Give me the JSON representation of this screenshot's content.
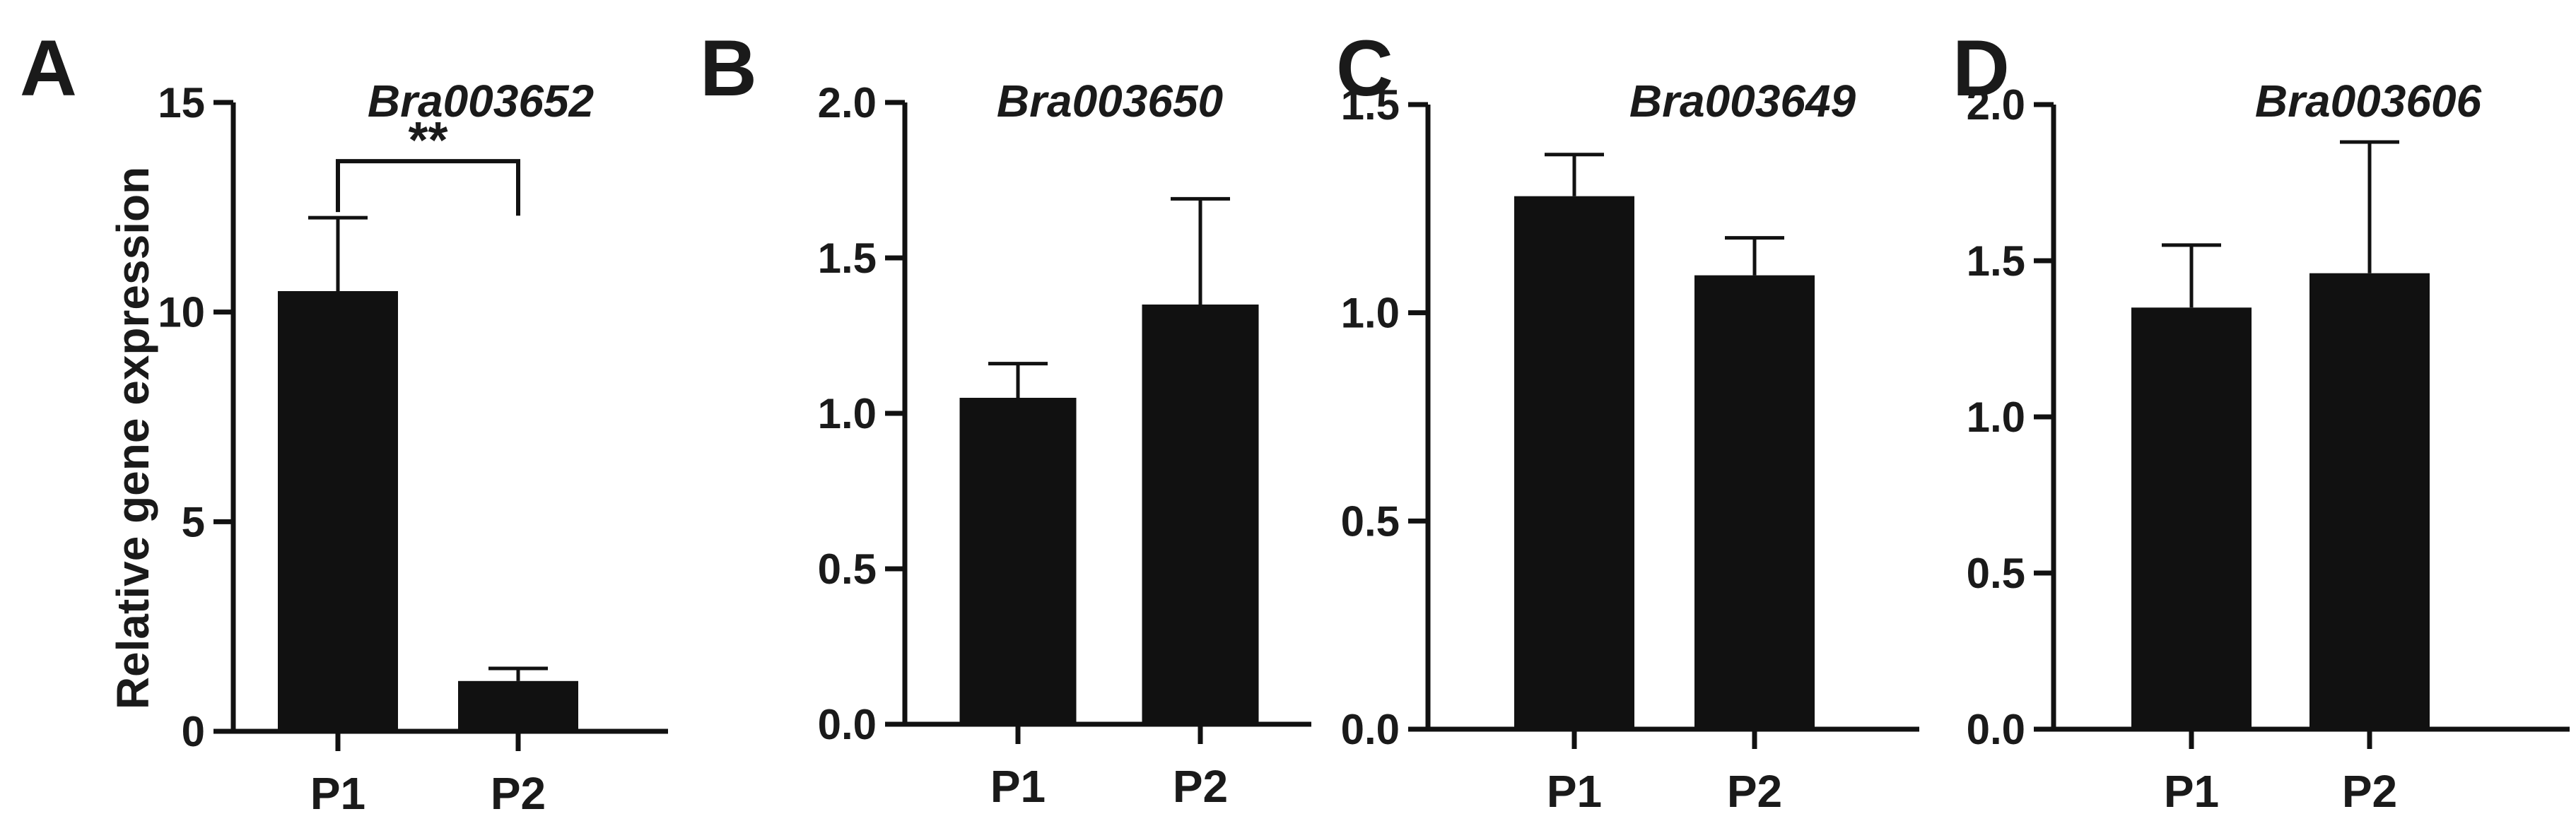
{
  "figure": {
    "ylabel": "Relative gene expression"
  },
  "chart_data": [
    {
      "type": "bar",
      "panel": "A",
      "title": "Bra003652",
      "xlabel": "",
      "ylabel": "Relative gene expression",
      "categories": [
        "P1",
        "P2"
      ],
      "values": [
        10.5,
        1.2
      ],
      "errors": [
        1.75,
        0.3
      ],
      "ylim": [
        0,
        15
      ],
      "yticks": [
        "0",
        "5",
        "10",
        "15"
      ],
      "significance": {
        "between": [
          "P1",
          "P2"
        ],
        "label": "**"
      },
      "bar_color": "#111111",
      "grid": false
    },
    {
      "type": "bar",
      "panel": "B",
      "title": "Bra003650",
      "xlabel": "",
      "ylabel": "",
      "categories": [
        "P1",
        "P2"
      ],
      "values": [
        1.05,
        1.35
      ],
      "errors": [
        0.11,
        0.34
      ],
      "ylim": [
        0,
        2.0
      ],
      "yticks": [
        "0.0",
        "0.5",
        "1.0",
        "1.5",
        "2.0"
      ],
      "bar_color": "#111111",
      "grid": false
    },
    {
      "type": "bar",
      "panel": "C",
      "title": "Bra003649",
      "xlabel": "",
      "ylabel": "",
      "categories": [
        "P1",
        "P2"
      ],
      "values": [
        1.28,
        1.09
      ],
      "errors": [
        0.1,
        0.09
      ],
      "ylim": [
        0,
        1.5
      ],
      "yticks": [
        "0.0",
        "0.5",
        "1.0",
        "1.5"
      ],
      "bar_color": "#111111",
      "grid": false
    },
    {
      "type": "bar",
      "panel": "D",
      "title": "Bra003606",
      "xlabel": "",
      "ylabel": "",
      "categories": [
        "P1",
        "P2"
      ],
      "values": [
        1.35,
        1.46
      ],
      "errors": [
        0.2,
        0.42
      ],
      "ylim": [
        0,
        2.0
      ],
      "yticks": [
        "0.0",
        "0.5",
        "1.0",
        "1.5",
        "2.0"
      ],
      "bar_color": "#111111",
      "grid": false
    }
  ]
}
